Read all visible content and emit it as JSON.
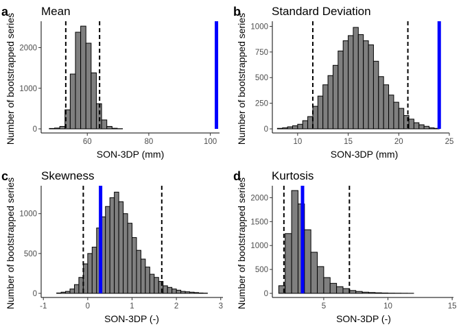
{
  "chart_data": [
    {
      "type": "bar",
      "panel": "a",
      "title": "Mean",
      "xlabel": "SON-3DP (mm)",
      "ylabel": "Number of bootstrapped series",
      "xlim": [
        45,
        103
      ],
      "ylim": [
        0,
        2650
      ],
      "xticks": [
        60,
        80,
        100
      ],
      "yticks": [
        0,
        1000,
        2000
      ],
      "bin_width": 1.7,
      "bins": [
        {
          "x": 48.5,
          "y": 10
        },
        {
          "x": 50.2,
          "y": 20
        },
        {
          "x": 51.9,
          "y": 60
        },
        {
          "x": 53.6,
          "y": 470
        },
        {
          "x": 55.3,
          "y": 1350
        },
        {
          "x": 57.0,
          "y": 2380
        },
        {
          "x": 58.7,
          "y": 2530
        },
        {
          "x": 60.4,
          "y": 2110
        },
        {
          "x": 62.1,
          "y": 1380
        },
        {
          "x": 63.8,
          "y": 620
        },
        {
          "x": 65.5,
          "y": 220
        },
        {
          "x": 67.2,
          "y": 60
        },
        {
          "x": 68.9,
          "y": 15
        },
        {
          "x": 70.6,
          "y": 5
        }
      ],
      "observed": 102,
      "ci": [
        53.0,
        64.0
      ],
      "colors": {
        "bar": "#7f7f7f",
        "observed": "#0000ff"
      }
    },
    {
      "type": "bar",
      "panel": "b",
      "title": "Standard Deviation",
      "xlabel": "SON-3DP (mm)",
      "ylabel": "Number of bootstrapped series",
      "xlim": [
        7.5,
        25
      ],
      "ylim": [
        0,
        1050
      ],
      "xticks": [
        10,
        15,
        20,
        25
      ],
      "yticks": [
        0,
        250,
        500,
        750,
        1000
      ],
      "bin_width": 0.5,
      "bins": [
        {
          "x": 8.25,
          "y": 5
        },
        {
          "x": 8.75,
          "y": 10
        },
        {
          "x": 9.25,
          "y": 20
        },
        {
          "x": 9.75,
          "y": 30
        },
        {
          "x": 10.25,
          "y": 45
        },
        {
          "x": 10.75,
          "y": 80
        },
        {
          "x": 11.25,
          "y": 120
        },
        {
          "x": 11.75,
          "y": 220
        },
        {
          "x": 12.25,
          "y": 320
        },
        {
          "x": 12.75,
          "y": 430
        },
        {
          "x": 13.25,
          "y": 520
        },
        {
          "x": 13.75,
          "y": 620
        },
        {
          "x": 14.25,
          "y": 760
        },
        {
          "x": 14.75,
          "y": 860
        },
        {
          "x": 15.25,
          "y": 910
        },
        {
          "x": 15.75,
          "y": 990
        },
        {
          "x": 16.25,
          "y": 920
        },
        {
          "x": 16.75,
          "y": 860
        },
        {
          "x": 17.25,
          "y": 820
        },
        {
          "x": 17.75,
          "y": 660
        },
        {
          "x": 18.25,
          "y": 510
        },
        {
          "x": 18.75,
          "y": 430
        },
        {
          "x": 19.25,
          "y": 330
        },
        {
          "x": 19.75,
          "y": 260
        },
        {
          "x": 20.25,
          "y": 200
        },
        {
          "x": 20.75,
          "y": 130
        },
        {
          "x": 21.25,
          "y": 95
        },
        {
          "x": 21.75,
          "y": 60
        },
        {
          "x": 22.25,
          "y": 40
        },
        {
          "x": 22.75,
          "y": 25
        },
        {
          "x": 23.25,
          "y": 10
        },
        {
          "x": 23.75,
          "y": 5
        }
      ],
      "observed": 24.0,
      "ci": [
        11.5,
        20.9
      ],
      "colors": {
        "bar": "#7f7f7f",
        "observed": "#0000ff"
      }
    },
    {
      "type": "bar",
      "panel": "c",
      "title": "Skewness",
      "xlabel": "SON-3DP (-)",
      "ylabel": "Number of bootstrapped series",
      "xlim": [
        -1.05,
        3.05
      ],
      "ylim": [
        0,
        1350
      ],
      "xticks": [
        -1,
        0,
        1,
        2,
        3
      ],
      "yticks": [
        0,
        500,
        1000
      ],
      "bin_width": 0.1,
      "bins": [
        {
          "x": -0.65,
          "y": 5
        },
        {
          "x": -0.55,
          "y": 15
        },
        {
          "x": -0.45,
          "y": 25
        },
        {
          "x": -0.35,
          "y": 55
        },
        {
          "x": -0.25,
          "y": 110
        },
        {
          "x": -0.15,
          "y": 200
        },
        {
          "x": -0.05,
          "y": 370
        },
        {
          "x": 0.05,
          "y": 500
        },
        {
          "x": 0.15,
          "y": 580
        },
        {
          "x": 0.25,
          "y": 820
        },
        {
          "x": 0.35,
          "y": 960
        },
        {
          "x": 0.45,
          "y": 1090
        },
        {
          "x": 0.55,
          "y": 1200
        },
        {
          "x": 0.65,
          "y": 1270
        },
        {
          "x": 0.75,
          "y": 1150
        },
        {
          "x": 0.85,
          "y": 1000
        },
        {
          "x": 0.95,
          "y": 880
        },
        {
          "x": 1.05,
          "y": 700
        },
        {
          "x": 1.15,
          "y": 540
        },
        {
          "x": 1.25,
          "y": 430
        },
        {
          "x": 1.35,
          "y": 330
        },
        {
          "x": 1.45,
          "y": 240
        },
        {
          "x": 1.55,
          "y": 200
        },
        {
          "x": 1.65,
          "y": 150
        },
        {
          "x": 1.75,
          "y": 95
        },
        {
          "x": 1.85,
          "y": 75
        },
        {
          "x": 1.95,
          "y": 55
        },
        {
          "x": 2.05,
          "y": 40
        },
        {
          "x": 2.15,
          "y": 25
        },
        {
          "x": 2.25,
          "y": 20
        },
        {
          "x": 2.35,
          "y": 15
        },
        {
          "x": 2.45,
          "y": 10
        },
        {
          "x": 2.55,
          "y": 5
        },
        {
          "x": 2.65,
          "y": 3
        }
      ],
      "observed": 0.29,
      "ci": [
        -0.1,
        1.67
      ],
      "colors": {
        "bar": "#7f7f7f",
        "observed": "#0000ff"
      }
    },
    {
      "type": "bar",
      "panel": "d",
      "title": "Kurtosis",
      "xlabel": "SON-3DP (-)",
      "ylabel": "Number of bootstrapped series",
      "xlim": [
        1.0,
        15.1
      ],
      "ylim": [
        0,
        2250
      ],
      "xticks": [
        5,
        10,
        15
      ],
      "yticks": [
        0,
        500,
        1000,
        1500,
        2000
      ],
      "bin_width": 0.5,
      "bins": [
        {
          "x": 1.75,
          "y": 160
        },
        {
          "x": 2.25,
          "y": 1250
        },
        {
          "x": 2.75,
          "y": 2150
        },
        {
          "x": 3.25,
          "y": 1870
        },
        {
          "x": 3.75,
          "y": 1330
        },
        {
          "x": 4.25,
          "y": 860
        },
        {
          "x": 4.75,
          "y": 560
        },
        {
          "x": 5.25,
          "y": 330
        },
        {
          "x": 5.75,
          "y": 210
        },
        {
          "x": 6.25,
          "y": 140
        },
        {
          "x": 6.75,
          "y": 100
        },
        {
          "x": 7.25,
          "y": 60
        },
        {
          "x": 7.75,
          "y": 40
        },
        {
          "x": 8.25,
          "y": 25
        },
        {
          "x": 8.75,
          "y": 18
        },
        {
          "x": 9.25,
          "y": 12
        },
        {
          "x": 9.75,
          "y": 8
        },
        {
          "x": 10.25,
          "y": 5
        },
        {
          "x": 10.75,
          "y": 4
        },
        {
          "x": 11.25,
          "y": 3
        },
        {
          "x": 11.75,
          "y": 2
        }
      ],
      "observed": 3.35,
      "ci": [
        1.9,
        7.0
      ],
      "colors": {
        "bar": "#7f7f7f",
        "observed": "#0000ff"
      }
    }
  ]
}
